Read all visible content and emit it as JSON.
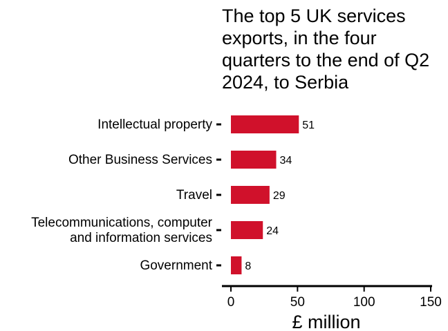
{
  "chart_data": {
    "type": "bar",
    "orientation": "horizontal",
    "title": "The top 5 UK services exports, in the four quarters to the end of Q2 2024, to Serbia",
    "categories": [
      "Intellectual property",
      "Other Business Services",
      "Travel",
      "Telecommunications, computer and information services",
      "Government"
    ],
    "values": [
      51,
      34,
      29,
      24,
      8
    ],
    "xlabel": "£ million",
    "ylabel": "",
    "xlim": [
      0,
      150
    ],
    "xticks": [
      0,
      50,
      100,
      150
    ],
    "bar_color": "#d0112b",
    "grid": false,
    "legend": "none"
  }
}
